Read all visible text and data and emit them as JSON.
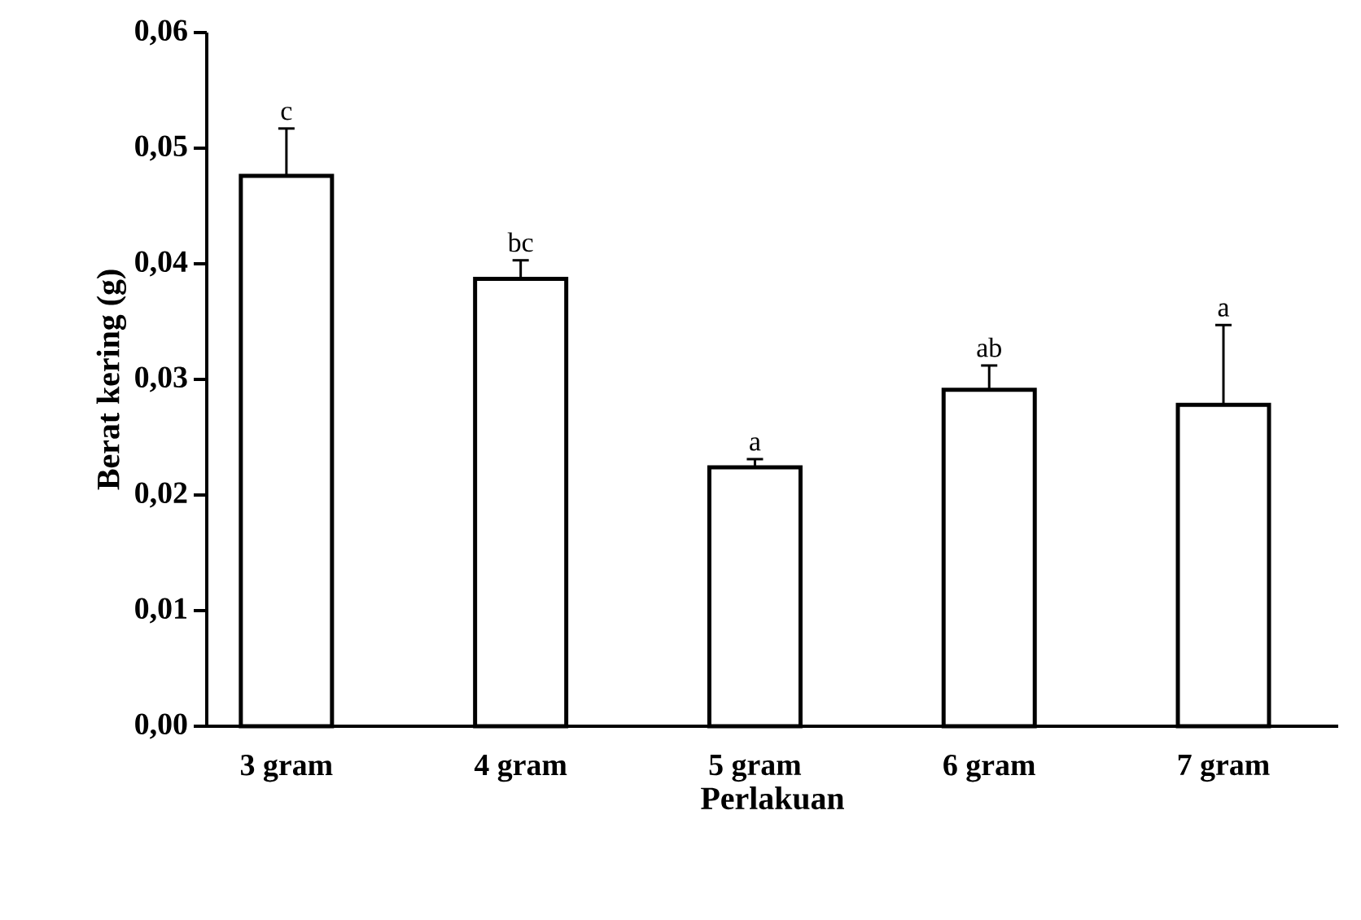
{
  "chart_data": {
    "type": "bar",
    "xlabel": "Perlakuan",
    "ylabel": "Berat kering (g)",
    "categories": [
      "3 gram",
      "4 gram",
      "5 gram",
      "6 gram",
      "7 gram"
    ],
    "values": [
      0.0476,
      0.0387,
      0.0224,
      0.0291,
      0.0278
    ],
    "errors": [
      [
        0.0476,
        0.0517
      ],
      [
        0.0387,
        0.0403
      ],
      [
        0.0224,
        0.0231
      ],
      [
        0.0291,
        0.0312
      ],
      [
        0.0278,
        0.0347
      ]
    ],
    "color": "#000000",
    "ylim": [
      0,
      0.06
    ],
    "yticks": [
      {
        "value": 0,
        "label": "0,00"
      },
      {
        "value": 0.01,
        "label": "0,01"
      },
      {
        "value": 0.02,
        "label": "0,02"
      },
      {
        "value": 0.03,
        "label": "0,03"
      },
      {
        "value": 0.04,
        "label": "0,04"
      },
      {
        "value": 0.05,
        "label": "0,05"
      },
      {
        "value": 0.06,
        "label": "0,06"
      }
    ],
    "annotations": [
      {
        "text": "c",
        "x": "3 gram",
        "y": 0.0517
      },
      {
        "text": "bc",
        "x": "4 gram",
        "y": 0.0403
      },
      {
        "text": "a",
        "x": "5 gram",
        "y": 0.0231
      },
      {
        "text": "ab",
        "x": "6 gram",
        "y": 0.0312
      },
      {
        "text": "a",
        "x": "7 gram",
        "y": 0.0347
      }
    ]
  }
}
